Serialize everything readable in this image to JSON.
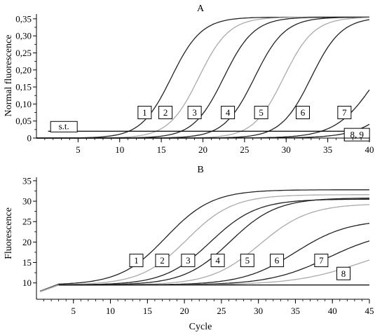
{
  "chart_data": [
    {
      "type": "line",
      "title": "A",
      "xlabel": "",
      "ylabel": "Normal fluorescence",
      "xlim": [
        0,
        40
      ],
      "ylim": [
        0,
        0.36
      ],
      "grid": false,
      "x_ticks": [
        5,
        10,
        15,
        20,
        25,
        30,
        35,
        40
      ],
      "x_tick_labels": [
        "5",
        "10",
        "15",
        "20",
        "25",
        "30",
        "35",
        "40"
      ],
      "y_ticks": [
        0,
        0.05,
        0.1,
        0.15,
        0.2,
        0.25,
        0.3,
        0.35
      ],
      "y_tick_labels": [
        "0",
        "0,05",
        "0,10",
        "0,15",
        "0,20",
        "0,25",
        "0,30",
        "0,35"
      ],
      "threshold": {
        "label": "s.t.",
        "value": 0.02
      },
      "series": [
        {
          "label": "1",
          "color": "#222222",
          "midpoint": 16.2,
          "slope": 0.55,
          "max": 0.355,
          "label_at": [
            13,
            0.075
          ]
        },
        {
          "label": "2",
          "color": "#aaaaaa",
          "midpoint": 19.5,
          "slope": 0.55,
          "max": 0.355,
          "label_at": [
            15.5,
            0.075
          ]
        },
        {
          "label": "3",
          "color": "#222222",
          "midpoint": 22.5,
          "slope": 0.55,
          "max": 0.355,
          "label_at": [
            19,
            0.075
          ]
        },
        {
          "label": "4",
          "color": "#222222",
          "midpoint": 26.2,
          "slope": 0.55,
          "max": 0.355,
          "label_at": [
            23,
            0.075
          ]
        },
        {
          "label": "5",
          "color": "#aaaaaa",
          "midpoint": 29.7,
          "slope": 0.55,
          "max": 0.355,
          "label_at": [
            27,
            0.075
          ]
        },
        {
          "label": "6",
          "color": "#222222",
          "midpoint": 33.0,
          "slope": 0.55,
          "max": 0.355,
          "label_at": [
            32,
            0.075
          ]
        },
        {
          "label": "7",
          "color": "#222222",
          "midpoint": 40.8,
          "slope": 0.42,
          "max": 0.34,
          "label_at": [
            37,
            0.075
          ]
        },
        {
          "label": "8, 9",
          "color": "#222222",
          "midpoint": 45.0,
          "slope": 0.4,
          "max": 0.34,
          "label_at": [
            38.5,
            0.01
          ]
        }
      ]
    },
    {
      "type": "line",
      "title": "B",
      "xlabel": "Cycle",
      "ylabel": "Fluorescence",
      "xlim": [
        0,
        45
      ],
      "ylim": [
        6,
        35.5
      ],
      "grid": false,
      "x_ticks": [
        5,
        10,
        15,
        20,
        25,
        30,
        35,
        40,
        45
      ],
      "x_tick_labels": [
        "5",
        "10",
        "15",
        "20",
        "25",
        "30",
        "35",
        "40",
        "45"
      ],
      "y_ticks": [
        10,
        15,
        20,
        25,
        30,
        35
      ],
      "y_tick_labels": [
        "10",
        "15",
        "20",
        "25",
        "30",
        "35"
      ],
      "baseline": 9.5,
      "series": [
        {
          "label": "1",
          "color": "#222222",
          "midpoint": 17.5,
          "slope": 0.32,
          "max": 32.8,
          "label_at": [
            13.5,
            15.5
          ]
        },
        {
          "label": "2",
          "color": "#aaaaaa",
          "midpoint": 20.3,
          "slope": 0.32,
          "max": 31.6,
          "label_at": [
            17,
            15.5
          ]
        },
        {
          "label": "3",
          "color": "#222222",
          "midpoint": 23.5,
          "slope": 0.32,
          "max": 30.5,
          "label_at": [
            20.5,
            15.5
          ]
        },
        {
          "label": "4",
          "color": "#222222",
          "midpoint": 26.2,
          "slope": 0.32,
          "max": 30.8,
          "label_at": [
            24.5,
            15.5
          ]
        },
        {
          "label": "5",
          "color": "#aaaaaa",
          "midpoint": 30.2,
          "slope": 0.3,
          "max": 29.4,
          "label_at": [
            28.5,
            15.5
          ]
        },
        {
          "label": "6",
          "color": "#222222",
          "midpoint": 35.0,
          "slope": 0.28,
          "max": 25.5,
          "label_at": [
            32.5,
            15.5
          ]
        },
        {
          "label": "7",
          "color": "#222222",
          "midpoint": 39.5,
          "slope": 0.25,
          "max": 23.0,
          "label_at": [
            38.5,
            15.5
          ]
        },
        {
          "label": "8",
          "color": "#aaaaaa",
          "midpoint": 44.0,
          "slope": 0.22,
          "max": 20.5,
          "label_at": [
            41.5,
            12.3
          ]
        }
      ]
    }
  ]
}
